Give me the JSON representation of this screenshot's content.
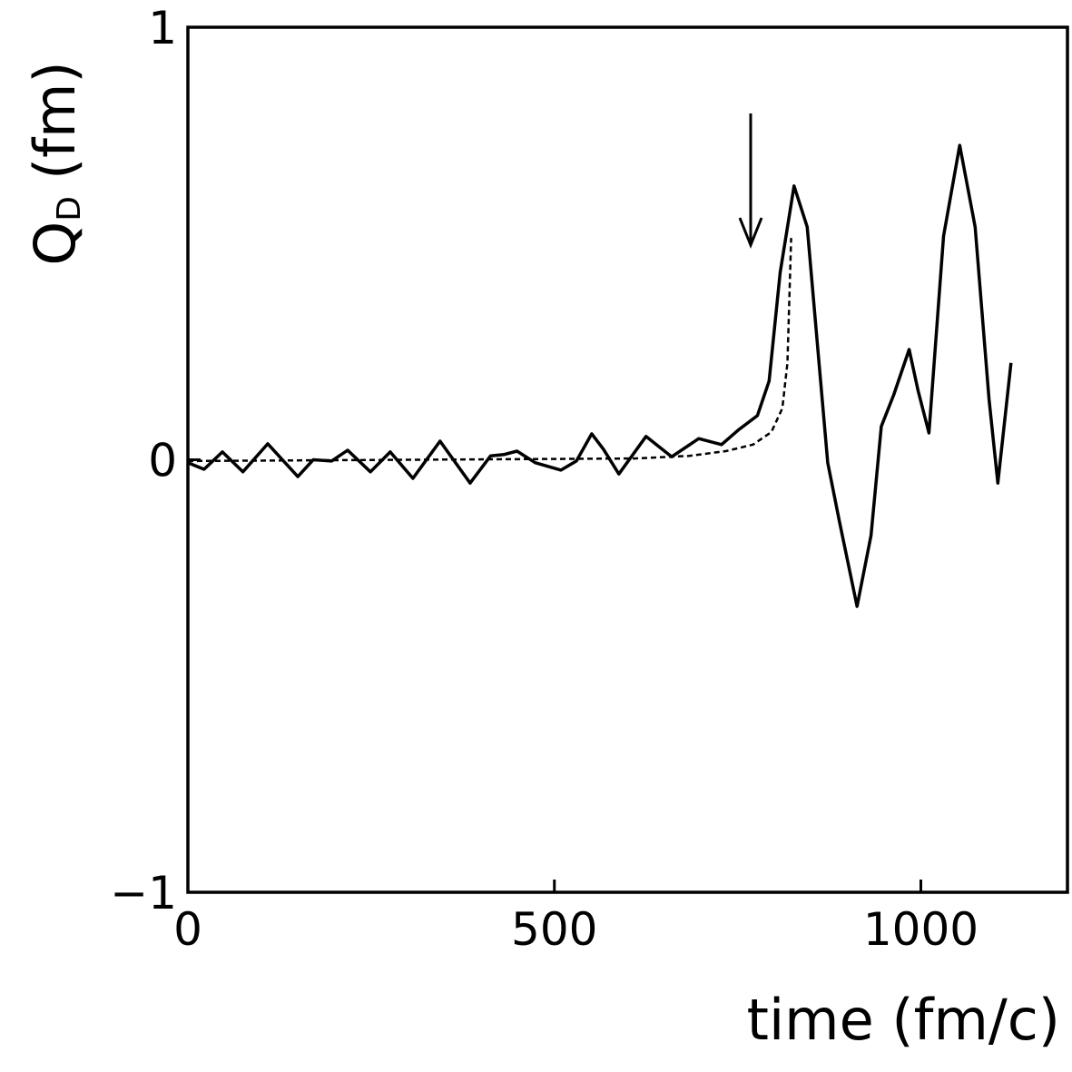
{
  "chart_data": {
    "type": "line",
    "xlabel": "time (fm/c)",
    "ylabel": {
      "main": "Q",
      "sub": "D",
      "unit": "(fm)"
    },
    "xlim": [
      0,
      1200
    ],
    "ylim": [
      -1,
      1
    ],
    "xticks": [
      0,
      500,
      1000
    ],
    "yticks": [
      {
        "value": -1,
        "label": "−1"
      },
      0,
      1
    ],
    "x": [
      0,
      22,
      47,
      75,
      109,
      150,
      171,
      196,
      218,
      249,
      276,
      307,
      344,
      385,
      413,
      431,
      449,
      474,
      509,
      530,
      551,
      567,
      588,
      625,
      660,
      697,
      728,
      752,
      777,
      793,
      808,
      827,
      845,
      861,
      873,
      889,
      913,
      932,
      946,
      963,
      984,
      996,
      1011,
      1031,
      1053,
      1074,
      1093,
      1105,
      1123
    ],
    "series": [
      {
        "style": "solid",
        "color": "#000000",
        "values": [
          -0.007,
          -0.022,
          0.018,
          -0.028,
          0.037,
          -0.039,
          0,
          -0.003,
          0.022,
          -0.028,
          0.018,
          -0.043,
          0.043,
          -0.054,
          0.009,
          0.012,
          0.02,
          -0.007,
          -0.024,
          -0.003,
          0.06,
          0.024,
          -0.033,
          0.054,
          0.007,
          0.049,
          0.035,
          0.07,
          0.102,
          0.182,
          0.433,
          0.633,
          0.538,
          0.224,
          -0.007,
          -0.144,
          -0.339,
          -0.175,
          0.077,
          0.15,
          0.255,
          0.161,
          0.062,
          0.517,
          0.727,
          0.538,
          0.14,
          -0.054,
          0.224
        ]
      },
      {
        "style": "dashed",
        "color": "#000000",
        "x": [
          0,
          610,
          684,
          734,
          771,
          796,
          811,
          818,
          823
        ],
        "values": [
          -0.003,
          0.003,
          0.009,
          0.02,
          0.035,
          0.064,
          0.119,
          0.224,
          0.513
        ]
      }
    ]
  }
}
